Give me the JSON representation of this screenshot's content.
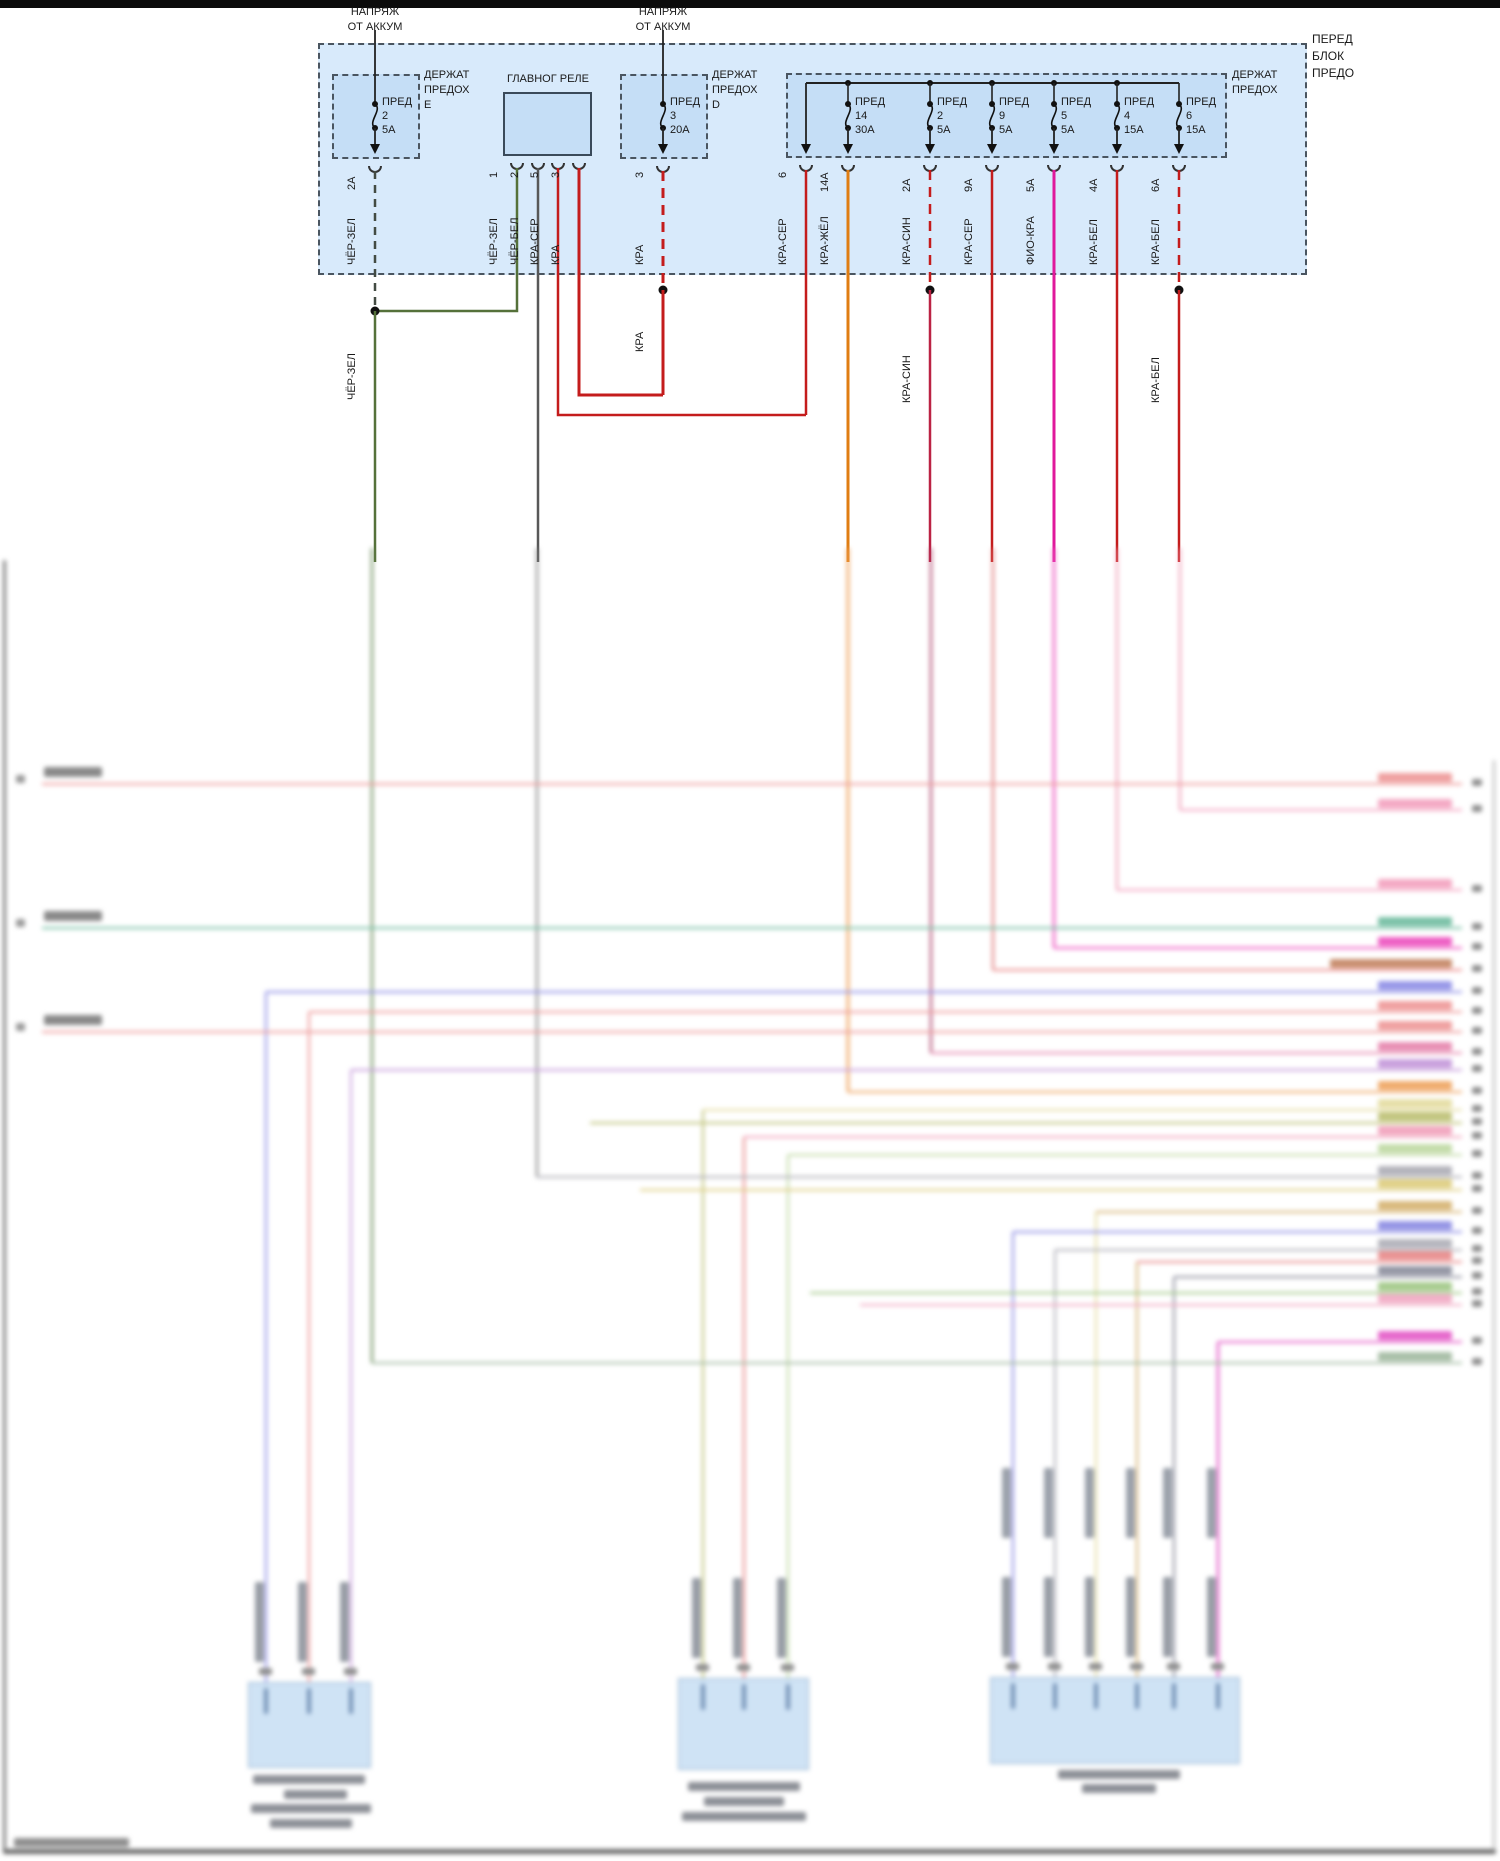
{
  "diagram": {
    "block_title_lines": [
      "ПЕРЕД",
      "БЛОК",
      "ПРЕДО"
    ],
    "battery_feed_label_lines": [
      "НАПРЯЖ",
      "ОТ АККУМ"
    ],
    "holder_e": {
      "label_lines": [
        "ДЕРЖАТ",
        "ПРЕДОХ",
        "Е"
      ],
      "fuse": {
        "name": "ПРЕД",
        "number": "2",
        "rating": "5А"
      },
      "pin": "2А",
      "wire": "ЧЁР-ЗЕЛ",
      "wire_below": "ЧЁР-ЗЕЛ"
    },
    "relay": {
      "label": "ГЛАВНОГ РЕЛЕ",
      "pins": [
        {
          "number": "1",
          "wire": "ЧЁР-ЗЕЛ"
        },
        {
          "number": "2",
          "wire": "ЧЁР-БЕЛ"
        },
        {
          "number": "5",
          "wire": "КРА-СЕР"
        },
        {
          "number": "3",
          "wire": "КРА"
        }
      ]
    },
    "holder_d": {
      "label_lines": [
        "ДЕРЖАТ",
        "ПРЕДОХ",
        "D"
      ],
      "fuse": {
        "name": "ПРЕД",
        "number": "3",
        "rating": "20А"
      },
      "pin": "3",
      "wire": "КРА",
      "wire_below": "КРА"
    },
    "holder_main": {
      "label_lines": [
        "ДЕРЖАТ",
        "ПРЕДОХ"
      ],
      "feed_pin": "6",
      "feed_wire": "КРА-СЕР",
      "fuses": [
        {
          "name": "ПРЕД",
          "number": "14",
          "rating": "30А",
          "pin": "14А",
          "wire": "КРА-ЖЁЛ"
        },
        {
          "name": "ПРЕД",
          "number": "2",
          "rating": "5А",
          "pin": "2А",
          "wire": "КРА-СИН",
          "wire_below": "КРА-СИН"
        },
        {
          "name": "ПРЕД",
          "number": "9",
          "rating": "5А",
          "pin": "9А",
          "wire": "КРА-СЕР"
        },
        {
          "name": "ПРЕД",
          "number": "5",
          "rating": "5А",
          "pin": "5А",
          "wire": "ФИО-КРА"
        },
        {
          "name": "ПРЕД",
          "number": "4",
          "rating": "15А",
          "pin": "4А",
          "wire": "КРА-БЕЛ"
        },
        {
          "name": "ПРЕД",
          "number": "6",
          "rating": "15А",
          "pin": "6А",
          "wire": "КРА-БЕЛ",
          "wire_below": "КРА-БЕЛ"
        }
      ]
    },
    "colors": {
      "block_fill": "#d8eafb",
      "holder_fill": "#c5def6",
      "wire_black_green": "#55713a",
      "wire_black_white": "#585858",
      "wire_red": "#c41c1c",
      "wire_red_yellow": "#e07d12",
      "wire_violet_red": "#e0189b",
      "text": "#1a1a1a"
    }
  }
}
